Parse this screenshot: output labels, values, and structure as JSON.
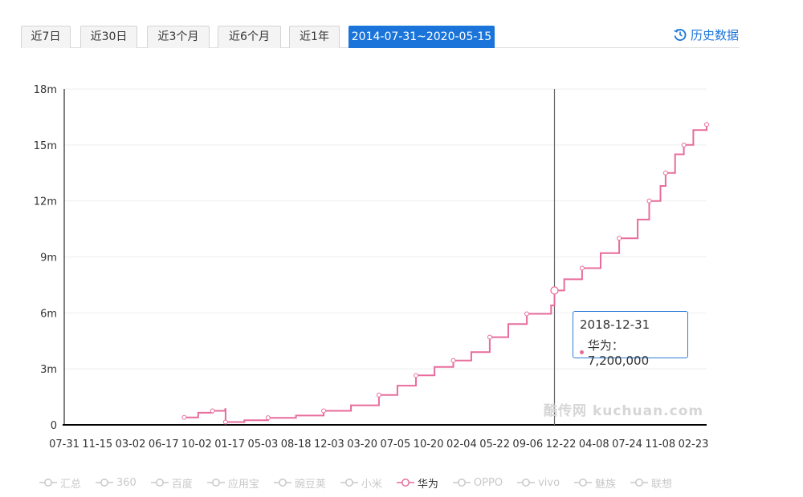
{
  "tabs": [
    {
      "label": "近7日",
      "active": false
    },
    {
      "label": "近30日",
      "active": false
    },
    {
      "label": "近3个月",
      "active": false
    },
    {
      "label": "近6个月",
      "active": false
    },
    {
      "label": "近1年",
      "active": false
    },
    {
      "label": "2014-07-31~2020-05-15",
      "active": true
    }
  ],
  "history_link": {
    "label": "历史数据",
    "icon": "history-clock-icon"
  },
  "tooltip": {
    "date": "2018-12-31",
    "series_label": "华为：7,200,000"
  },
  "watermark": "酷传网 kuchuan.com",
  "colors": {
    "accent": "#1a74d9",
    "series": "#e76c9c",
    "legend_inactive": "#c8c8c8"
  },
  "chart_data": {
    "type": "line",
    "ylim": [
      0,
      18000000
    ],
    "yticks": [
      "0",
      "3m",
      "6m",
      "9m",
      "12m",
      "15m",
      "18m"
    ],
    "xticks": [
      "07-31",
      "11-15",
      "03-02",
      "06-17",
      "10-02",
      "01-17",
      "05-03",
      "08-18",
      "12-03",
      "03-20",
      "07-05",
      "10-20",
      "02-04",
      "05-22",
      "09-06",
      "12-22",
      "04-08",
      "07-24",
      "11-08",
      "02-23"
    ],
    "grid": true,
    "legend_position": "bottom",
    "crosshair_date": "2018-12-31",
    "legend": [
      {
        "name": "汇总",
        "active": false
      },
      {
        "name": "360",
        "active": false
      },
      {
        "name": "百度",
        "active": false
      },
      {
        "name": "应用宝",
        "active": false
      },
      {
        "name": "豌豆荚",
        "active": false
      },
      {
        "name": "小米",
        "active": false
      },
      {
        "name": "华为",
        "active": true
      },
      {
        "name": "OPPO",
        "active": false
      },
      {
        "name": "vivo",
        "active": false
      },
      {
        "name": "魅族",
        "active": false
      },
      {
        "name": "联想",
        "active": false
      }
    ],
    "series": [
      {
        "name": "华为",
        "x": [
          "2015-08-30",
          "2015-10-15",
          "2015-12-01",
          "2016-01-12",
          "2016-01-13",
          "2016-03-15",
          "2016-06-01",
          "2016-09-01",
          "2016-12-01",
          "2017-03-01",
          "2017-06-01",
          "2017-08-01",
          "2017-10-01",
          "2017-12-01",
          "2018-02-01",
          "2018-04-01",
          "2018-06-01",
          "2018-08-01",
          "2018-10-01",
          "2018-12-20",
          "2018-12-31",
          "2019-02-01",
          "2019-04-01",
          "2019-06-01",
          "2019-08-01",
          "2019-10-01",
          "2019-11-08",
          "2019-12-15",
          "2020-01-01",
          "2020-02-01",
          "2020-03-01",
          "2020-04-01",
          "2020-05-15"
        ],
        "values": [
          400000,
          650000,
          750000,
          850000,
          150000,
          250000,
          380000,
          500000,
          750000,
          1050000,
          1600000,
          2100000,
          2650000,
          3100000,
          3450000,
          3900000,
          4700000,
          5400000,
          5950000,
          6400000,
          7200000,
          7800000,
          8400000,
          9200000,
          10000000,
          11000000,
          12000000,
          12800000,
          13500000,
          14500000,
          15000000,
          15800000,
          16100000
        ]
      }
    ]
  }
}
